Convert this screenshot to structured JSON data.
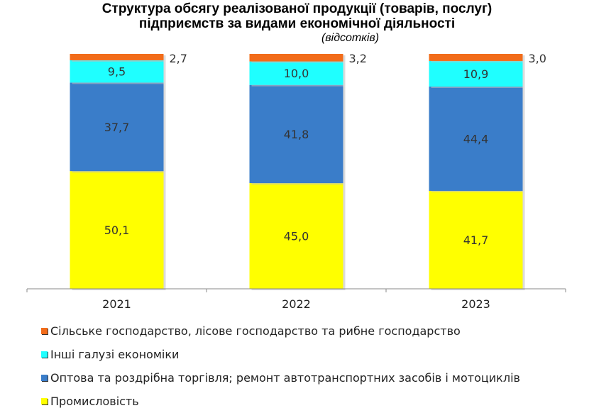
{
  "chart_data": {
    "type": "bar",
    "stacked": true,
    "title": "Структура обсягу реалізованої продукції (товарів, послуг) підприємств за видами економічної діяльності",
    "title_lines": [
      "Структура обсягу реалізованої продукції (товарів, послуг)",
      "підприємств за видами економічної діяльності"
    ],
    "subtitle": "(відсотків)",
    "categories": [
      "2021",
      "2022",
      "2023"
    ],
    "ylim": [
      0,
      100
    ],
    "grid": false,
    "legend_position": "bottom",
    "series": [
      {
        "name": "Промисловість",
        "color": "#ffff00",
        "values": [
          50.1,
          45.0,
          41.7
        ],
        "labels": [
          "50,1",
          "45,0",
          "41,7"
        ]
      },
      {
        "name": "Оптова та роздрібна торгівля; ремонт автотранспортних засобів і мотоциклів",
        "color": "#3a7dc9",
        "values": [
          37.7,
          41.8,
          44.4
        ],
        "labels": [
          "37,7",
          "41,8",
          "44,4"
        ]
      },
      {
        "name": "Інші галузі економіки",
        "color": "#1fffff",
        "values": [
          9.5,
          10.0,
          10.9
        ],
        "labels": [
          "9,5",
          "10,0",
          "10,9"
        ]
      },
      {
        "name": "Сільське господарство, лісове господарство та рибне господарство",
        "color": "#f26c1a",
        "values": [
          2.7,
          3.2,
          3.0
        ],
        "labels": [
          "2,7",
          "3,2",
          "3,0"
        ]
      }
    ]
  },
  "legend_order": [
    3,
    2,
    1,
    0
  ]
}
